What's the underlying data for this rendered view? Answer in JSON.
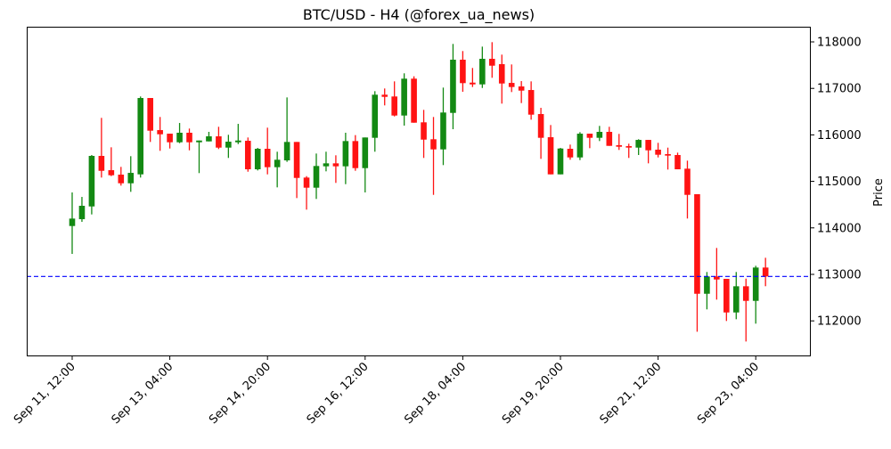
{
  "chart_data": {
    "type": "candlestick",
    "title": "BTC/USD - H4 (@forex_ua_news)",
    "xlabel": "",
    "ylabel": "Price",
    "ylim": [
      111237,
      118326
    ],
    "yticks": [
      112000,
      113000,
      114000,
      115000,
      116000,
      117000,
      118000
    ],
    "ytick_labels": [
      "112000",
      "113000",
      "114000",
      "115000",
      "116000",
      "117000",
      "118000"
    ],
    "xtick_labels": [
      "Sep 11, 12:00",
      "Sep 13, 04:00",
      "Sep 14, 20:00",
      "Sep 16, 12:00",
      "Sep 18, 04:00",
      "Sep 19, 20:00",
      "Sep 21, 12:00",
      "Sep 23, 04:00"
    ],
    "grid": false,
    "colors": {
      "up": "#008000",
      "down": "#ff0000",
      "reference_line": "#0000ff"
    },
    "reference_line": {
      "value": 112955,
      "style": "dashed"
    },
    "x": [
      "Sep 11, 12:00",
      "Sep 11, 16:00",
      "Sep 11, 20:00",
      "Sep 12, 00:00",
      "Sep 12, 04:00",
      "Sep 12, 08:00",
      "Sep 12, 12:00",
      "Sep 12, 16:00",
      "Sep 12, 20:00",
      "Sep 13, 00:00",
      "Sep 13, 04:00",
      "Sep 13, 08:00",
      "Sep 13, 12:00",
      "Sep 13, 16:00",
      "Sep 13, 20:00",
      "Sep 14, 00:00",
      "Sep 14, 04:00",
      "Sep 14, 08:00",
      "Sep 14, 12:00",
      "Sep 14, 16:00",
      "Sep 14, 20:00",
      "Sep 15, 00:00",
      "Sep 15, 04:00",
      "Sep 15, 08:00",
      "Sep 15, 12:00",
      "Sep 15, 16:00",
      "Sep 15, 20:00",
      "Sep 16, 00:00",
      "Sep 16, 04:00",
      "Sep 16, 08:00",
      "Sep 16, 12:00",
      "Sep 16, 16:00",
      "Sep 16, 20:00",
      "Sep 17, 00:00",
      "Sep 17, 04:00",
      "Sep 17, 08:00",
      "Sep 17, 12:00",
      "Sep 17, 16:00",
      "Sep 17, 20:00",
      "Sep 18, 00:00",
      "Sep 18, 04:00",
      "Sep 18, 08:00",
      "Sep 18, 12:00",
      "Sep 18, 16:00",
      "Sep 18, 20:00",
      "Sep 19, 00:00",
      "Sep 19, 04:00",
      "Sep 19, 08:00",
      "Sep 19, 12:00",
      "Sep 19, 16:00",
      "Sep 19, 20:00",
      "Sep 20, 00:00",
      "Sep 20, 04:00",
      "Sep 20, 08:00",
      "Sep 20, 12:00",
      "Sep 20, 16:00",
      "Sep 20, 20:00",
      "Sep 21, 00:00",
      "Sep 21, 04:00",
      "Sep 21, 08:00",
      "Sep 21, 12:00",
      "Sep 21, 16:00",
      "Sep 21, 20:00",
      "Sep 22, 00:00",
      "Sep 22, 04:00",
      "Sep 22, 08:00",
      "Sep 22, 12:00",
      "Sep 22, 16:00",
      "Sep 22, 20:00",
      "Sep 23, 00:00",
      "Sep 23, 04:00",
      "Sep 23, 08:00"
    ],
    "ohlc": [
      [
        114040,
        114762,
        113440,
        114200
      ],
      [
        114187,
        114666,
        114130,
        114475
      ],
      [
        114461,
        115567,
        114289,
        115548
      ],
      [
        115548,
        116366,
        115082,
        115227
      ],
      [
        115241,
        115733,
        115113,
        115132
      ],
      [
        115145,
        115312,
        114909,
        114959
      ],
      [
        114959,
        115542,
        114775,
        115183
      ],
      [
        115151,
        116826,
        115082,
        116793
      ],
      [
        116793,
        116793,
        115848,
        116090
      ],
      [
        116103,
        116385,
        115657,
        116013
      ],
      [
        116026,
        116026,
        115707,
        115841
      ],
      [
        115841,
        116256,
        115822,
        116046
      ],
      [
        116046,
        116136,
        115668,
        115841
      ],
      [
        115841,
        115879,
        115178,
        115879
      ],
      [
        115860,
        116065,
        115860,
        115969
      ],
      [
        115969,
        116174,
        115695,
        115726
      ],
      [
        115726,
        116002,
        115504,
        115854
      ],
      [
        115841,
        116237,
        115802,
        115879
      ],
      [
        115873,
        115944,
        115208,
        115260
      ],
      [
        115260,
        115720,
        115235,
        115701
      ],
      [
        115701,
        116155,
        115151,
        115305
      ],
      [
        115305,
        115638,
        114871,
        115465
      ],
      [
        115452,
        116806,
        115420,
        115848
      ],
      [
        115848,
        115848,
        114641,
        115074
      ],
      [
        115082,
        115113,
        114392,
        114864
      ],
      [
        114864,
        115599,
        114622,
        115331
      ],
      [
        115324,
        115638,
        115216,
        115388
      ],
      [
        115388,
        115561,
        114967,
        115324
      ],
      [
        115324,
        116046,
        114940,
        115867
      ],
      [
        115867,
        115995,
        115228,
        115285
      ],
      [
        115285,
        115944,
        114762,
        115944
      ],
      [
        115937,
        116940,
        115638,
        116864
      ],
      [
        116864,
        116998,
        116634,
        116818
      ],
      [
        116826,
        117151,
        116397,
        116416
      ],
      [
        116416,
        117324,
        116199,
        117209
      ],
      [
        117209,
        117260,
        116262,
        116262
      ],
      [
        116270,
        116538,
        115504,
        115898
      ],
      [
        115906,
        116385,
        114710,
        115688
      ],
      [
        115688,
        117017,
        115350,
        116481
      ],
      [
        116473,
        117956,
        116122,
        117617
      ],
      [
        117617,
        117803,
        116927,
        117113
      ],
      [
        117124,
        117439,
        117029,
        117086
      ],
      [
        117086,
        117898,
        117009,
        117636
      ],
      [
        117636,
        117994,
        117228,
        117488
      ],
      [
        117521,
        117726,
        116672,
        117105
      ],
      [
        117118,
        117515,
        116921,
        117029
      ],
      [
        117042,
        117157,
        116684,
        116952
      ],
      [
        116965,
        117151,
        116327,
        116435
      ],
      [
        116448,
        116582,
        115484,
        115937
      ],
      [
        115950,
        116212,
        115151,
        115151
      ],
      [
        115151,
        115720,
        115151,
        115707
      ],
      [
        115701,
        115791,
        115465,
        115515
      ],
      [
        115515,
        116059,
        115458,
        116026
      ],
      [
        116026,
        116026,
        115714,
        115937
      ],
      [
        115937,
        116193,
        115867,
        116065
      ],
      [
        116065,
        116174,
        115764,
        115764
      ],
      [
        115778,
        116021,
        115676,
        115745
      ],
      [
        115758,
        115810,
        115504,
        115726
      ],
      [
        115726,
        115906,
        115567,
        115892
      ],
      [
        115892,
        115892,
        115388,
        115668
      ],
      [
        115682,
        115829,
        115515,
        115573
      ],
      [
        115586,
        115726,
        115254,
        115554
      ],
      [
        115567,
        115618,
        115260,
        115260
      ],
      [
        115273,
        115446,
        114201,
        114710
      ],
      [
        114724,
        114724,
        111767,
        112583
      ],
      [
        112583,
        113051,
        112247,
        112955
      ],
      [
        112955,
        113568,
        112457,
        112890
      ],
      [
        112904,
        112904,
        111997,
        112181
      ],
      [
        112181,
        113051,
        112035,
        112744
      ],
      [
        112744,
        112909,
        111556,
        112430
      ],
      [
        112430,
        113185,
        111940,
        113147
      ],
      [
        113147,
        113357,
        112745,
        112955
      ]
    ]
  }
}
